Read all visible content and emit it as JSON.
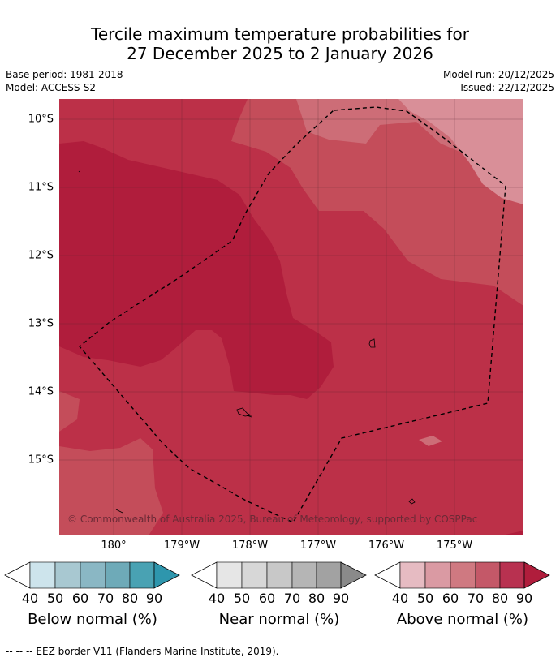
{
  "title": {
    "line1": "Tercile maximum temperature probabilities for",
    "line2": "27 December 2025 to 2 January 2026"
  },
  "meta": {
    "base_period": "Base period: 1981-2018",
    "model": "Model: ACCESS-S2",
    "model_run": "Model run: 20/12/2025",
    "issued": "Issued: 22/12/2025"
  },
  "map": {
    "lat_labels": [
      "10°S",
      "11°S",
      "12°S",
      "13°S",
      "14°S",
      "15°S"
    ],
    "lon_labels": [
      "180°",
      "179°W",
      "178°W",
      "177°W",
      "176°W",
      "175°W"
    ],
    "copyright": "© Commonwealth of Australia 2025, Bureau of Meteorology, supported by COSPPac",
    "colors": {
      "band_90": "#b01d3c",
      "band_80": "#bc3048",
      "band_70": "#c44d5a",
      "band_60": "#cd6d77",
      "band_50": "#d98f98",
      "gridline": "#5a2a30",
      "eez": "#000000"
    }
  },
  "colorbars": {
    "ticks": [
      "40",
      "50",
      "60",
      "70",
      "80",
      "90"
    ],
    "below": {
      "title": "Below normal (%)",
      "colors": [
        "#cde4ec",
        "#a8c8d1",
        "#8ab7c4",
        "#6eaab8",
        "#49a2b3",
        "#2e96ad"
      ]
    },
    "near": {
      "title": "Near normal (%)",
      "colors": [
        "#e6e6e6",
        "#d7d7d7",
        "#c8c8c8",
        "#b5b5b5",
        "#a2a2a2",
        "#8a8a8a"
      ]
    },
    "above": {
      "title": "Above normal (%)",
      "colors": [
        "#e6bbc2",
        "#da9aa3",
        "#cf7981",
        "#c45868",
        "#b83150",
        "#b01d3c"
      ]
    }
  },
  "footnote": "--  --  -- EEZ border V11 (Flanders Marine Institute, 2019)."
}
